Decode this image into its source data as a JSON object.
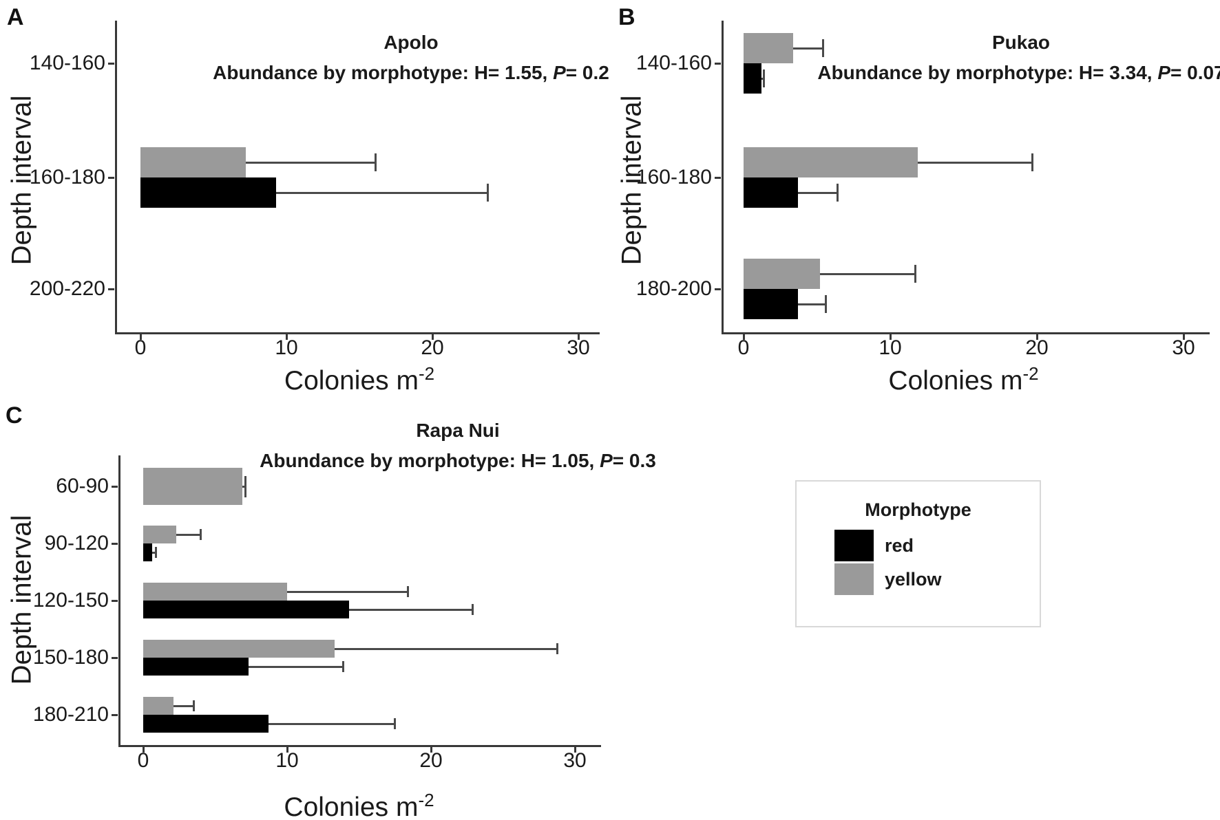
{
  "figure": {
    "colors": {
      "red_morphotype": "#000000",
      "yellow_morphotype": "#9a9a9a",
      "error_bar": "#4a4a4a",
      "axis": "#383838",
      "background": "#ffffff",
      "legend_border": "#d8d8d8"
    },
    "legend": {
      "title": "Morphotype",
      "entries": [
        {
          "label": "red",
          "color": "#000000"
        },
        {
          "label": "yellow",
          "color": "#9a9a9a"
        }
      ]
    }
  },
  "chart_data": [
    {
      "panel": "A",
      "type": "bar",
      "orientation": "horizontal",
      "title": "Apolo",
      "subtitle_pre": "Abundance by morphotype: H= 1.55, ",
      "subtitle_italic": "P",
      "subtitle_post": "= 0.2",
      "xlabel": "Colonies m",
      "xlabel_sup": "-2",
      "ylabel": "Depth interval",
      "x_ticks": [
        0,
        10,
        20,
        30
      ],
      "xlim": [
        0,
        31
      ],
      "categories": [
        "140-160",
        "160-180",
        "200-220"
      ],
      "groups": [
        {
          "category": "140-160",
          "bars": []
        },
        {
          "category": "160-180",
          "bars": [
            {
              "series": "yellow",
              "value": 7.2,
              "error_high": 16.1
            },
            {
              "series": "red",
              "value": 9.3,
              "error_high": 23.8
            }
          ]
        },
        {
          "category": "200-220",
          "bars": []
        }
      ]
    },
    {
      "panel": "B",
      "type": "bar",
      "orientation": "horizontal",
      "title": "Pukao",
      "subtitle_pre": "Abundance by morphotype: H= 3.34, ",
      "subtitle_italic": "P",
      "subtitle_post": "= 0.07",
      "xlabel": "Colonies m",
      "xlabel_sup": "-2",
      "ylabel": "Depth interval",
      "x_ticks": [
        0,
        10,
        20,
        30
      ],
      "xlim": [
        0,
        31
      ],
      "categories": [
        "140-160",
        "160-180",
        "180-200"
      ],
      "groups": [
        {
          "category": "140-160",
          "bars": [
            {
              "series": "yellow",
              "value": 3.4,
              "error_high": 5.4
            },
            {
              "series": "red",
              "value": 1.2,
              "error_high": 1.4
            }
          ]
        },
        {
          "category": "160-180",
          "bars": [
            {
              "series": "yellow",
              "value": 11.9,
              "error_high": 19.7
            },
            {
              "series": "red",
              "value": 3.7,
              "error_high": 6.4
            }
          ]
        },
        {
          "category": "180-200",
          "bars": [
            {
              "series": "yellow",
              "value": 5.2,
              "error_high": 11.7
            },
            {
              "series": "red",
              "value": 3.7,
              "error_high": 5.6
            }
          ]
        }
      ]
    },
    {
      "panel": "C",
      "type": "bar",
      "orientation": "horizontal",
      "title": "Rapa Nui",
      "subtitle_pre": "Abundance by morphotype: H= 1.05, ",
      "subtitle_italic": "P",
      "subtitle_post": "= 0.3",
      "xlabel": "Colonies m",
      "xlabel_sup": "-2",
      "ylabel": "Depth interval",
      "x_ticks": [
        0,
        10,
        20,
        30
      ],
      "xlim": [
        0,
        31
      ],
      "categories": [
        "60-90",
        "90-120",
        "120-150",
        "150-180",
        "180-210"
      ],
      "groups": [
        {
          "category": "60-90",
          "bars": [
            {
              "series": "yellow",
              "value": 6.9,
              "error_high": 7.1,
              "lone": true
            }
          ]
        },
        {
          "category": "90-120",
          "bars": [
            {
              "series": "yellow",
              "value": 2.3,
              "error_high": 4.0
            },
            {
              "series": "red",
              "value": 0.6,
              "error_high": 0.9
            }
          ]
        },
        {
          "category": "120-150",
          "bars": [
            {
              "series": "yellow",
              "value": 10.0,
              "error_high": 18.4
            },
            {
              "series": "red",
              "value": 14.3,
              "error_high": 22.9
            }
          ]
        },
        {
          "category": "150-180",
          "bars": [
            {
              "series": "yellow",
              "value": 13.3,
              "error_high": 28.8
            },
            {
              "series": "red",
              "value": 7.3,
              "error_high": 13.9
            }
          ]
        },
        {
          "category": "180-210",
          "bars": [
            {
              "series": "yellow",
              "value": 2.1,
              "error_high": 3.5
            },
            {
              "series": "red",
              "value": 8.7,
              "error_high": 17.5
            }
          ]
        }
      ]
    }
  ]
}
